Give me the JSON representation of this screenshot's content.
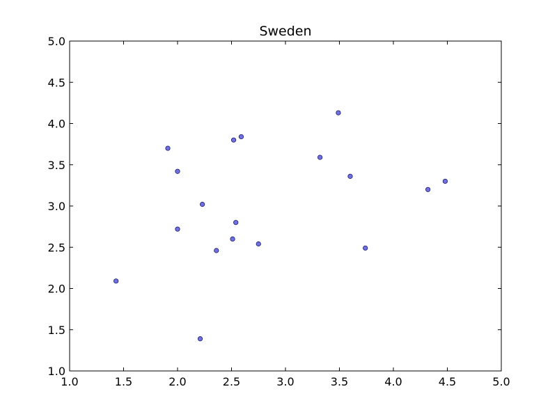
{
  "chart_data": {
    "type": "scatter",
    "title": "Sweden",
    "xlabel": "",
    "ylabel": "",
    "xlim": [
      1.0,
      5.0
    ],
    "ylim": [
      1.0,
      5.0
    ],
    "xticks": [
      "1.0",
      "1.5",
      "2.0",
      "2.5",
      "3.0",
      "3.5",
      "4.0",
      "4.5",
      "5.0"
    ],
    "yticks": [
      "1.0",
      "1.5",
      "2.0",
      "2.5",
      "3.0",
      "3.5",
      "4.0",
      "4.5",
      "5.0"
    ],
    "grid": false,
    "marker_color": "#7070e0",
    "marker_edge_color": "#1a1a6e",
    "points": [
      {
        "x": 1.43,
        "y": 2.09
      },
      {
        "x": 1.91,
        "y": 3.7
      },
      {
        "x": 2.0,
        "y": 3.42
      },
      {
        "x": 2.0,
        "y": 2.72
      },
      {
        "x": 2.21,
        "y": 1.39
      },
      {
        "x": 2.23,
        "y": 3.02
      },
      {
        "x": 2.36,
        "y": 2.46
      },
      {
        "x": 2.51,
        "y": 2.6
      },
      {
        "x": 2.52,
        "y": 3.8
      },
      {
        "x": 2.54,
        "y": 2.8
      },
      {
        "x": 2.59,
        "y": 3.84
      },
      {
        "x": 2.75,
        "y": 2.54
      },
      {
        "x": 3.32,
        "y": 3.59
      },
      {
        "x": 3.49,
        "y": 4.13
      },
      {
        "x": 3.6,
        "y": 3.36
      },
      {
        "x": 3.74,
        "y": 2.49
      },
      {
        "x": 4.32,
        "y": 3.2
      },
      {
        "x": 4.48,
        "y": 3.3
      }
    ]
  }
}
